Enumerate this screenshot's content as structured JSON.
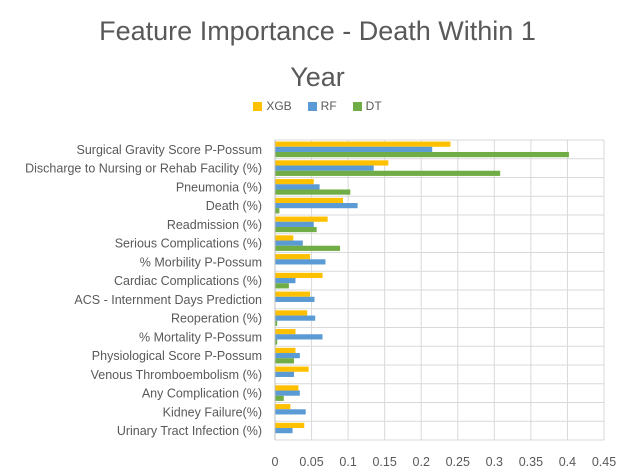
{
  "chart_data": {
    "type": "bar",
    "orientation": "horizontal",
    "title": "Feature Importance - Death Within 1 Year",
    "title_lines": [
      "Feature Importance - Death Within 1",
      "Year"
    ],
    "legend_position": "top",
    "grid": true,
    "xlim": [
      0,
      0.45
    ],
    "x_ticks": [
      "0",
      "0.05",
      "0.1",
      "0.15",
      "0.2",
      "0.25",
      "0.3",
      "0.35",
      "0.4",
      "0.45"
    ],
    "categories": [
      "Surgical Gravity Score P-Possum",
      "Discharge to Nursing or Rehab Facility (%)",
      "Pneumonia (%)",
      "Death (%)",
      "Readmission (%)",
      "Serious Complications (%)",
      "% Morbility P-Possum",
      "Cardiac Complications (%)",
      "ACS - Internment Days Prediction",
      "Reoperation (%)",
      "% Mortality P-Possum",
      "Physiological Score P-Possum",
      "Venous Thromboembolism (%)",
      "Any Complication (%)",
      "Kidney Failure(%)",
      "Urinary Tract Infection (%)"
    ],
    "series": [
      {
        "name": "XGB",
        "color": "#FFC000",
        "values": [
          0.24,
          0.155,
          0.053,
          0.093,
          0.072,
          0.025,
          0.048,
          0.065,
          0.048,
          0.044,
          0.028,
          0.028,
          0.046,
          0.032,
          0.021,
          0.04
        ]
      },
      {
        "name": "RF",
        "color": "#5B9BD5",
        "values": [
          0.215,
          0.135,
          0.061,
          0.113,
          0.053,
          0.038,
          0.069,
          0.028,
          0.054,
          0.055,
          0.065,
          0.034,
          0.026,
          0.034,
          0.042,
          0.024
        ]
      },
      {
        "name": "DT",
        "color": "#70AD47",
        "values": [
          0.402,
          0.308,
          0.103,
          0.006,
          0.057,
          0.089,
          0.0,
          0.019,
          0.0,
          0.003,
          0.003,
          0.026,
          0.0,
          0.012,
          0.0,
          0.0
        ]
      }
    ]
  }
}
